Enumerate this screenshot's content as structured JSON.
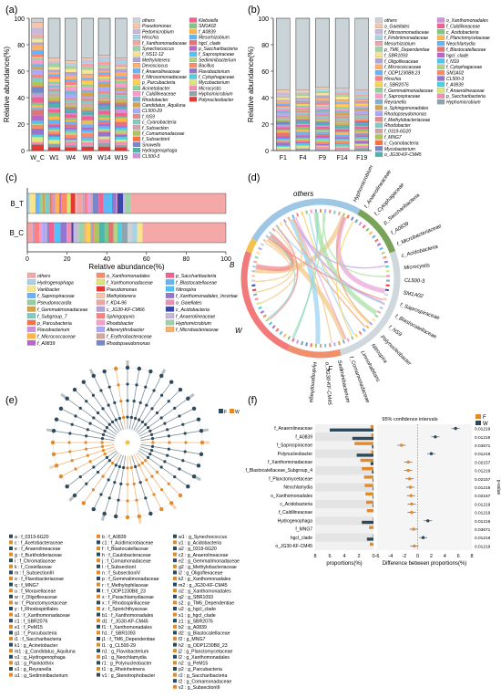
{
  "panels": {
    "a": "(a)",
    "b": "(b)",
    "c": "(c)",
    "d": "(d)",
    "e": "(e)",
    "f": "(f)"
  },
  "chart_data": [
    {
      "panel": "a",
      "type": "bar",
      "stacked": true,
      "ylabel": "Relative abundance(%)",
      "ylim": [
        0,
        100
      ],
      "yticks": [
        0,
        20,
        40,
        60,
        80,
        100
      ],
      "categories": [
        "W_C",
        "W1",
        "W4",
        "W9",
        "W14",
        "W19"
      ],
      "top_others_values": [
        3,
        30,
        32,
        30,
        28,
        30
      ],
      "legend": [
        "others",
        "Pseudomonas",
        "Pedomicrobium",
        "Hirschia",
        "f_Xanthomonadaceae",
        "Synechococcus",
        "f_NS11-12",
        "Methyloterera",
        "Devosciocus",
        "f_Anaerolineaceae",
        "f_Nitrosomonadaceae",
        "p_Parcubacteria",
        "Acinetobacter",
        "f_Caldilineaceae",
        "Rhodobacter",
        "Candidatus_Aquiluna",
        "CL500-29",
        "f_NS9",
        "c_Cyanobacteria",
        "f_Subsection",
        "f_Comamonadaceae",
        "f_SubsectionI",
        "Snowella",
        "Hydrogenophaga",
        "CL500-3",
        "Klebsiella",
        "SM1A02",
        "f_A0839",
        "Mesorhizobium",
        "hgcI_clade",
        "p_Saccharibacteria",
        "f_Saprospiraceae",
        "Sediminibacterium",
        "Bacillus",
        "Flavobacterium",
        "f_Cytophagaceae",
        "Mycobacterium",
        "Microcystis",
        "Hyphomicrobium",
        "Polynucleobacter"
      ]
    },
    {
      "panel": "b",
      "type": "bar",
      "stacked": true,
      "ylabel": "Relative abundance(%)",
      "ylim": [
        0,
        100
      ],
      "yticks": [
        0,
        20,
        40,
        60,
        80,
        100
      ],
      "categories": [
        "F1",
        "F4",
        "F9",
        "F14",
        "F19"
      ],
      "top_others_values": [
        54,
        54,
        52,
        53,
        54
      ],
      "legend": [
        "others",
        "o_Gaiellales",
        "f_Nitrosomonadaceae",
        "f_Fimbriimonadaceae",
        "Mesorhizobium",
        "p_TM6_Dependentiae",
        "f_SBR1093",
        "f_Oligoflexaceae",
        "f_Micrococcaceae",
        "f_ODP1230B8.23",
        "Hirschia",
        "c_SBR2076",
        "f_Gemmatimonadaceae",
        "f_Saprospiraceae",
        "Reyranella",
        "o_Sphingomonadales",
        "Rhodopseudomonas",
        "f_Methylobacteriaceae",
        "Rhodobacter",
        "f_0319-6G20",
        "f_MNG7",
        "c_Cyanobacteria",
        "Mycobacterium",
        "o_JG30-KF-CM45",
        "o_Xanthomonadales",
        "f_Caldilineaceae",
        "c_Acidobacteria",
        "f_Planctomycetaceae",
        "Neochlamydia",
        "f_Blastocatellaceae",
        "hgcI_clade",
        "f_NS9",
        "f_Cytophagaceae",
        "SM1A02",
        "CL500-3",
        "f_A0839",
        "f_Anaerolineaceae",
        "p_Saccharibacteria",
        "Hyphomicrobium"
      ]
    },
    {
      "panel": "c",
      "type": "bar",
      "orientation": "horizontal",
      "stacked": true,
      "xlabel": "Relative abundance(%)",
      "xlim": [
        0,
        100
      ],
      "xticks": [
        0,
        20,
        40,
        60,
        80,
        100
      ],
      "categories": [
        "B_T",
        "B_C"
      ],
      "legend": [
        "others",
        "Hydrogenophaga",
        "Variibacter",
        "f_Saprospiraceae",
        "Pseudonocardia",
        "f_Gemmatimonadaceae",
        "f_Subgroup_7",
        "p_Parcubacteria",
        "Flavobacterium",
        "f_Micrococcaceae",
        "f_A0839",
        "o_Xanthomonadales",
        "f_Xanthomonadaceae",
        "Pseudomonas",
        "Methyloterera",
        "f_KD4-96",
        "c_JG30-KF-CM66",
        "Sphingopyxis",
        "Rhodobacter",
        "Altererythrobacter",
        "f_Erythrobacteraceae",
        "Rhodopseudomonas",
        "p_Saccharibacteria",
        "f_Blastocatellaceae",
        "Nitrospira",
        "f_Xanthomonadales_Incertae",
        "o_Gaiellales",
        "c_Acidobacteria",
        "f_Anaerolineaceae",
        "Hyphomicrobium",
        "f_Microbacteriaceae"
      ]
    },
    {
      "panel": "d",
      "type": "chord",
      "groups": [
        "others",
        "B",
        "W",
        "F"
      ],
      "right_labels": [
        "Hyphomicrobium",
        "f_Anaerolineaceae",
        "f_Cytophagaceae",
        "p_Saccharibacteria",
        "f_A0839",
        "f_Microbacteriaceae",
        "c_Acidobacteria",
        "Microcystis",
        "CL500-3",
        "SM1A02",
        "f_Saprospiraceae",
        "f_Blastocatellaceae",
        "f_NS9",
        "Polynucleobacter",
        "Nitrospira",
        "Limnohabitans",
        "f_Comamonadaceae",
        "Sediminibacterium",
        "o_JG30-KF-CM45",
        "Hydrogenophaga"
      ]
    },
    {
      "panel": "e",
      "type": "cladogram",
      "legend_title": [
        "F",
        "W"
      ],
      "legend": [
        [
          "a : f_0319-6G20",
          "b : f_A0839",
          "w1 : g_Synechococcus"
        ],
        [
          "c : f_Acetobacteraceae",
          "c1 : f_Acidimicrobiaceae",
          "y1 : g_Acidobacteria"
        ],
        [
          "e : f_Anaerolineaceae",
          "f : f_Blastocatellaceae",
          "a2 : g_0319-6G20"
        ],
        [
          "g : f_Burkholderiaceae",
          "h : f_Caulobacteraceae",
          "c2 : g_Anaerolineaceae"
        ],
        [
          "i : f_Chromatiaceae",
          "j : f_Comamonadaceae",
          "e2 : g_Gemmatimonadaceae"
        ],
        [
          "k : f_Coxiellaceae",
          "l : f_SubsectionI",
          "g2 : g_Methylobacteriaceae"
        ],
        [
          "m : f_SubsectionIII",
          "n : f_SubsectionIV",
          "i2 : g_Oligoflexaceae"
        ],
        [
          "o : f_Flavobacteriaceae",
          "p : f_Gemmatimonadaceae",
          "k2 : g_Xanthomonadales"
        ],
        [
          "q : f_MNG7",
          "r : f_Methylophilaceae",
          "m2 : g_JG30-KF-CM45"
        ],
        [
          "u : f_Moraxellaceae",
          "t : f_ODP1230B8_23",
          "o2 : g_Xanthomonadales"
        ],
        [
          "w : f_Oligoflexaceae",
          "x : f_Parachlamydiaceae",
          "q2 : g_SBR1093"
        ],
        [
          "w : f_Planctomycetaceae",
          "x : f_Rhodospirillaceae",
          "s2 : g_TM6_Dependentiae"
        ],
        [
          "y : f_Rhodospirillales",
          "z : f_Sporichthyaceae",
          "u2 : g_hgcI_clade"
        ],
        [
          "a1 : f_Xanthomonadaceae",
          "b1 : f_Xanthomonadales",
          "x1 : g_hgcI_clade"
        ],
        [
          "c1 : f_SBR2076",
          "d1 : f_JG30-KF-CM45",
          "z1 : g_SBR2076"
        ],
        [
          "e1 : f_PeM15",
          "f1 : f_Xanthomonadales",
          "b2 : g_A0839"
        ],
        [
          "g1 : f_Parcubacteria",
          "h1 : f_SBR1093",
          "d2 : g_Blastocatellaceae"
        ],
        [
          "i1 : f_Saccharibacteria",
          "j1 : f_TM6_Dependentiae",
          "f2 : g_MNG7"
        ],
        [
          "k1 : g_Acinetobacter",
          "l1 : g_CL500-29",
          "h2 : g_ODP1230B8_23"
        ],
        [
          "m1 : g_Candidatus_Aquiluna",
          "n1 : g_Flavobacterium",
          "j2 : g_Planctomycetaceae"
        ],
        [
          "o1 : g_Hydrogenophaga",
          "p1 : g_Neochlamydia",
          "l2 : g_Xanthomonadales"
        ],
        [
          "q1 : g_Planktothrix",
          "r1 : g_Polynucleobacter",
          "n2 : g_PeM15"
        ],
        [
          "s1 : g_Reyranella",
          "t1 : g_Rheinheimera",
          "p2 : g_Parcubacteria"
        ],
        [
          "u1 : g_Sediminibacterium",
          "v1 : g_Stenotrophobacter",
          "r2 : g_Saccharibacteria"
        ],
        [
          "",
          "",
          "t2 : g_Comamonadaceae"
        ],
        [
          "",
          "",
          "v2 : g_SubsectionIII"
        ]
      ]
    },
    {
      "panel": "f",
      "type": "bar",
      "orientation": "horizontal",
      "title": "95% confidence intervals",
      "xlabel_left": "proportions(%)",
      "xlabel_right": "Difference between proportions(%)",
      "ylabel_right": "p-value",
      "series": [
        {
          "name": "F",
          "color": "#e08a2c"
        },
        {
          "name": "W",
          "color": "#2e4a5a"
        }
      ],
      "categories": [
        "f_Anaerolineaceae",
        "f_A0839",
        "f_Saprospiraceae",
        "Polynucleobacter",
        "f_Xanthomonadaceae",
        "f_Blastocatellaceae_Subgroup_4",
        "f_Planctomycetaceae",
        "Neochlamydia",
        "o_Xanthomonadales",
        "c_Acidobacteria",
        "f_Caldilineaceae",
        "Hydrogenophaga",
        "f_MNG7",
        "hgcI_clade",
        "o_JG30-KF-CM45"
      ],
      "F_values": [
        0.4,
        0.3,
        2.6,
        0.3,
        1.8,
        1.6,
        1.3,
        1.2,
        1.1,
        1.0,
        0.9,
        0.1,
        0.6,
        0.1,
        0.5
      ],
      "W_values": [
        6.0,
        2.9,
        0.2,
        2.3,
        0.4,
        0.2,
        0.1,
        0.1,
        0.1,
        0.1,
        0.0,
        1.6,
        0.0,
        0.9,
        0.0
      ],
      "diff": [
        5.6,
        2.6,
        -2.4,
        2.0,
        -1.4,
        -1.4,
        -1.2,
        -1.1,
        -1.0,
        -0.9,
        -0.9,
        1.5,
        -0.6,
        0.8,
        -0.5
      ],
      "pvalues": [
        "0.01219",
        "0.01219",
        "0.03671",
        "0.01219",
        "0.02157",
        "0.01219",
        "0.02157",
        "0.01219",
        "0.02157",
        "0.01219",
        "0.01219",
        "0.01219",
        "0.03671",
        "0.01219",
        "0.01219"
      ],
      "xticks_left": [
        "8",
        "6",
        "4",
        "2",
        "0"
      ],
      "xticks_right": [
        "-6",
        "-4",
        "-2",
        "0",
        "2",
        "4",
        "6",
        "8"
      ]
    }
  ]
}
